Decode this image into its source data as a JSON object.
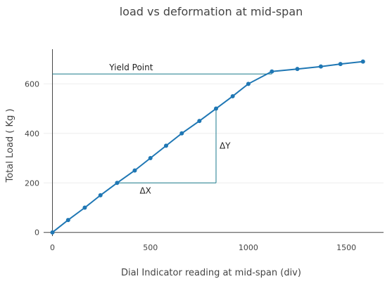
{
  "chart_data": {
    "type": "line",
    "title": "load vs deformation at mid-span",
    "xlabel": "Dial Indicator reading at mid-span (div)",
    "ylabel": "Total Load ( Kg )",
    "xlim": [
      -45,
      1690
    ],
    "ylim": [
      -15,
      740
    ],
    "xticks": [
      0,
      500,
      1000,
      1500
    ],
    "yticks": [
      0,
      200,
      400,
      600
    ],
    "grid": "horizontal",
    "line_color": "#1f77b4",
    "series": [
      {
        "x": [
          0,
          80,
          165,
          245,
          330,
          420,
          500,
          580,
          660,
          750,
          835,
          920,
          1000,
          1120,
          1250,
          1370,
          1470,
          1585
        ],
        "y": [
          0,
          50,
          100,
          150,
          200,
          250,
          300,
          350,
          400,
          450,
          500,
          550,
          600,
          650,
          660,
          670,
          680,
          690
        ]
      }
    ],
    "annotations": {
      "yield_point": {
        "label": "Yield Point",
        "y": 640,
        "x_end": 1120
      },
      "delta_x": {
        "label": "ΔX",
        "x0": 330,
        "x1": 835,
        "y": 200
      },
      "delta_y": {
        "label": "ΔY",
        "x": 835,
        "y0": 200,
        "y1": 500
      }
    }
  }
}
